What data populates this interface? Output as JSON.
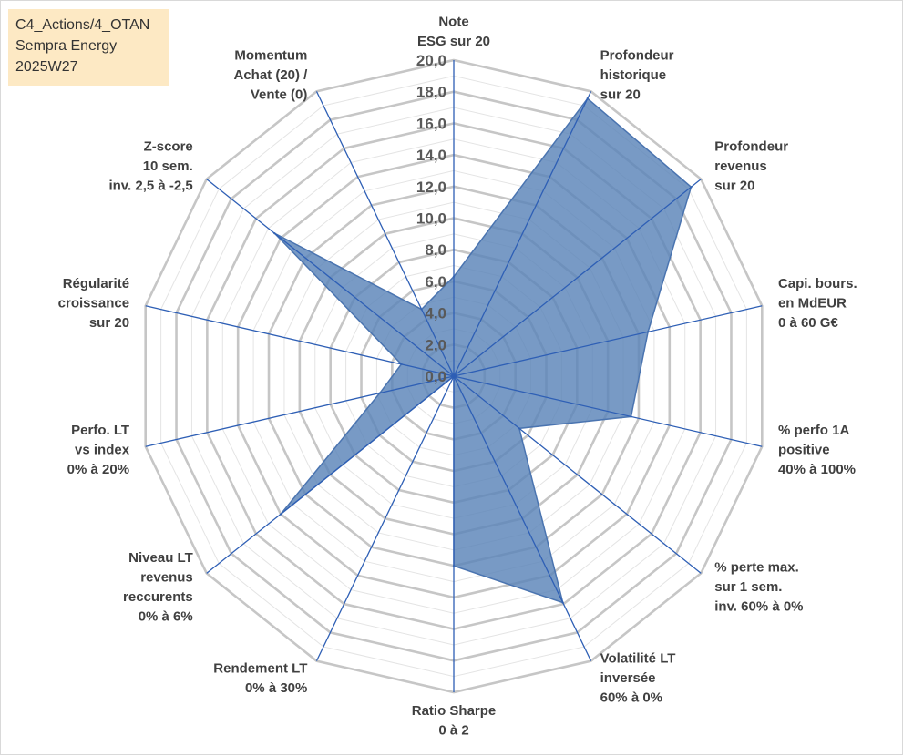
{
  "info_box": {
    "line1": "C4_Actions/4_OTAN",
    "line2": "Sempra Energy",
    "line3": "2025W27"
  },
  "colors": {
    "series_fill": "#5a84b8",
    "series_stroke": "#4a74b0",
    "spoke": "#2e5fb5",
    "grid_major": "#c6c6c6",
    "grid_minor": "#e4e4e4",
    "info_background": "#fde9c4"
  },
  "chart_data": {
    "type": "radar",
    "rmin": 0,
    "rmax": 20,
    "major_step": 2,
    "minor_step": 1,
    "tick_labels": [
      "0,0",
      "2,0",
      "4,0",
      "6,0",
      "8,0",
      "10,0",
      "12,0",
      "14,0",
      "16,0",
      "18,0",
      "20,0"
    ],
    "axes": [
      [
        "Note",
        "ESG sur 20"
      ],
      [
        "Profondeur",
        "historique",
        "sur 20"
      ],
      [
        "Profondeur",
        "revenus",
        "sur 20"
      ],
      [
        "Capi. bours.",
        "en MdEUR",
        "0 à 60 G€"
      ],
      [
        "% perfo 1A",
        "positive",
        "40% à 100%"
      ],
      [
        "% perte max.",
        "sur 1 sem.",
        "inv. 60% à 0%"
      ],
      [
        "Volatilité LT",
        "inversée",
        "60% à 0%"
      ],
      [
        "Ratio Sharpe",
        "0 à 2"
      ],
      [
        "Rendement LT",
        "0% à 30%"
      ],
      [
        "Niveau LT",
        "revenus",
        "reccurents",
        "0% à 6%"
      ],
      [
        "Perfo. LT",
        "vs index",
        "0% à 20%"
      ],
      [
        "Régularité",
        "croissance",
        "sur 20"
      ],
      [
        "Z-score",
        "10 sem.",
        "inv. 2,5 à -2,5"
      ],
      [
        "Momentum",
        "Achat (20) /",
        "Vente (0)"
      ]
    ],
    "series": [
      {
        "values": [
          6.3,
          19.5,
          19.2,
          12.6,
          11.5,
          5.3,
          15.9,
          12.0,
          0.0,
          14.0,
          4.8,
          3.4,
          14.5,
          4.7
        ]
      }
    ],
    "grid": true
  }
}
